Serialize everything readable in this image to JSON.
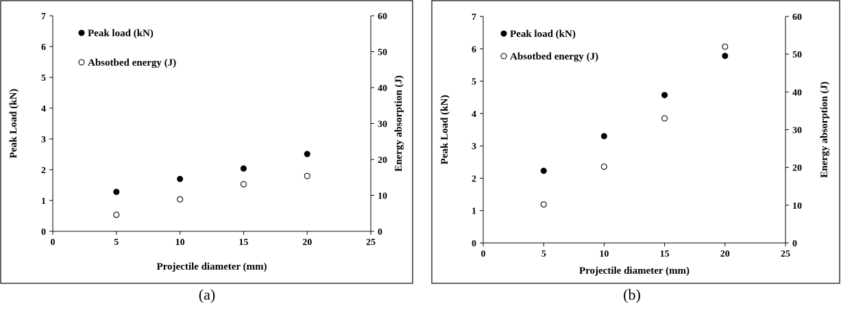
{
  "chart_data": [
    {
      "type": "scatter",
      "caption": "(a)",
      "xlabel": "Projectile diameter (mm)",
      "ylabel": "Peak Load (kN)",
      "y2label": "Energy absorption (J)",
      "xlim": [
        0,
        25
      ],
      "ylim": [
        0,
        7
      ],
      "y2lim": [
        0,
        60
      ],
      "xticks": [
        0,
        5,
        10,
        15,
        20,
        25
      ],
      "yticks": [
        0,
        1,
        2,
        3,
        4,
        5,
        6,
        7
      ],
      "y2ticks": [
        0,
        10,
        20,
        30,
        40,
        50,
        60
      ],
      "grid": false,
      "legend_position": "top-left",
      "series": [
        {
          "name": "Peak load (kN)",
          "axis": "left",
          "marker": "filled-circle",
          "x": [
            5,
            10,
            15,
            20
          ],
          "y": [
            1.28,
            1.7,
            2.04,
            2.51
          ]
        },
        {
          "name": "Absotbed energy (J)",
          "axis": "right",
          "marker": "open-circle",
          "x": [
            5,
            10,
            15,
            20
          ],
          "y": [
            4.6,
            8.9,
            13.1,
            15.4
          ]
        }
      ]
    },
    {
      "type": "scatter",
      "caption": "(b)",
      "xlabel": "Projectile diameter (mm)",
      "ylabel": "Peak Load (kN)",
      "y2label": "Energy absorption (J)",
      "xlim": [
        0,
        25
      ],
      "ylim": [
        0,
        7
      ],
      "y2lim": [
        0,
        60
      ],
      "xticks": [
        0,
        5,
        10,
        15,
        20,
        25
      ],
      "yticks": [
        0,
        1,
        2,
        3,
        4,
        5,
        6,
        7
      ],
      "y2ticks": [
        0,
        10,
        20,
        30,
        40,
        50,
        60
      ],
      "grid": false,
      "legend_position": "top-left",
      "series": [
        {
          "name": "Peak load (kN)",
          "axis": "left",
          "marker": "filled-circle",
          "x": [
            5,
            10,
            15,
            20
          ],
          "y": [
            2.23,
            3.3,
            4.57,
            5.78
          ]
        },
        {
          "name": "Absotbed energy (J)",
          "axis": "right",
          "marker": "open-circle",
          "x": [
            5,
            10,
            15,
            20
          ],
          "y": [
            10.2,
            20.2,
            33.0,
            52.0
          ]
        }
      ]
    }
  ]
}
